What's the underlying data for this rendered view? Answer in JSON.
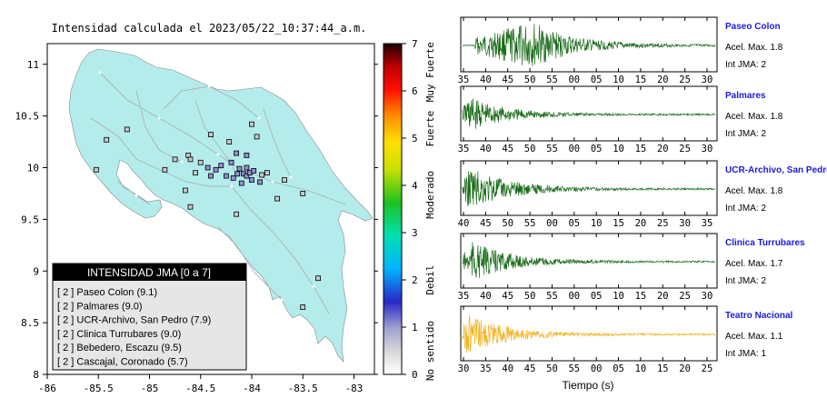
{
  "map": {
    "title": "Intensidad calculada el 2023/05/22_10:37:44_a.m.",
    "x_ticks": [
      "-86",
      "-85.5",
      "-85",
      "-84.5",
      "-84",
      "-83.5",
      "-83"
    ],
    "x_values": [
      -86,
      -85.5,
      -85,
      -84.5,
      -84,
      -83.5,
      -83
    ],
    "y_ticks": [
      "11",
      "10.5",
      "10",
      "9.5",
      "9",
      "8.5",
      "8"
    ],
    "y_values": [
      11,
      10.5,
      10,
      9.5,
      9,
      8.5,
      8
    ],
    "xlim": [
      -86,
      -82.8
    ],
    "ylim": [
      8,
      11.2
    ],
    "land_color": "#b4ecec",
    "stations": [
      {
        "lon": -84.75,
        "lat": 10.08
      },
      {
        "lon": -84.62,
        "lat": 10.12
      },
      {
        "lon": -84.5,
        "lat": 10.05
      },
      {
        "lon": -84.43,
        "lat": 10.0
      },
      {
        "lon": -84.35,
        "lat": 9.98
      },
      {
        "lon": -84.3,
        "lat": 10.02
      },
      {
        "lon": -84.2,
        "lat": 10.05
      },
      {
        "lon": -84.12,
        "lat": 9.99
      },
      {
        "lon": -84.08,
        "lat": 9.94
      },
      {
        "lon": -84.05,
        "lat": 9.92
      },
      {
        "lon": -84.02,
        "lat": 9.95
      },
      {
        "lon": -83.98,
        "lat": 9.97
      },
      {
        "lon": -84.14,
        "lat": 9.94
      },
      {
        "lon": -84.18,
        "lat": 9.9
      },
      {
        "lon": -84.0,
        "lat": 9.88
      },
      {
        "lon": -83.92,
        "lat": 9.86
      },
      {
        "lon": -83.9,
        "lat": 9.93
      },
      {
        "lon": -84.1,
        "lat": 9.85
      },
      {
        "lon": -84.25,
        "lat": 9.92
      },
      {
        "lon": -84.4,
        "lat": 9.92
      },
      {
        "lon": -84.55,
        "lat": 9.95
      },
      {
        "lon": -84.6,
        "lat": 10.08
      },
      {
        "lon": -84.22,
        "lat": 10.25
      },
      {
        "lon": -84.4,
        "lat": 10.32
      },
      {
        "lon": -84.0,
        "lat": 10.42
      },
      {
        "lon": -83.95,
        "lat": 10.3
      },
      {
        "lon": -84.05,
        "lat": 10.12
      },
      {
        "lon": -84.15,
        "lat": 10.14
      },
      {
        "lon": -85.22,
        "lat": 10.37
      },
      {
        "lon": -85.42,
        "lat": 10.27
      },
      {
        "lon": -85.52,
        "lat": 9.98
      },
      {
        "lon": -84.85,
        "lat": 9.98
      },
      {
        "lon": -84.65,
        "lat": 9.78
      },
      {
        "lon": -84.6,
        "lat": 9.62
      },
      {
        "lon": -84.15,
        "lat": 9.55
      },
      {
        "lon": -83.68,
        "lat": 9.88
      },
      {
        "lon": -83.75,
        "lat": 9.7
      },
      {
        "lon": -83.5,
        "lat": 9.75
      },
      {
        "lon": -83.35,
        "lat": 8.93
      },
      {
        "lon": -83.5,
        "lat": 8.65
      },
      {
        "lon": -84.05,
        "lat": 10.0
      },
      {
        "lon": -83.85,
        "lat": 9.95
      }
    ],
    "legend": {
      "title": "INTENSIDAD JMA [0 a 7]",
      "items": [
        "[ 2 ]  Paseo Colon (9.1)",
        "[ 2 ]  Palmares (9.0)",
        "[ 2 ]  UCR-Archivo, San Pedro (7.9)",
        "[ 2 ]  Clinica Turrubares (9.0)",
        "[ 2 ]  Bebedero, Escazu (9.5)",
        "[ 2 ]  Cascajal, Coronado (5.7)"
      ]
    }
  },
  "colorbar": {
    "ticks": [
      "0",
      "1",
      "2",
      "3",
      "4",
      "5",
      "6",
      "7"
    ],
    "tick_values": [
      0,
      1,
      2,
      3,
      4,
      5,
      6,
      7
    ],
    "labels": [
      "No sentido",
      "Debil",
      "Moderado",
      "Fuerte",
      "Muy Fuerte"
    ],
    "label_values": [
      0.5,
      2,
      3.8,
      5.2,
      6.4
    ]
  },
  "seismograms": {
    "xlabel": "Tiempo (s)",
    "panels": [
      {
        "name": "Paseo Colon",
        "acel": "Acel. Max. 1.8",
        "jma": "Int JMA: 2",
        "ticks": [
          "35",
          "40",
          "45",
          "50",
          "55",
          "00",
          "05",
          "10",
          "15",
          "20",
          "25",
          "30"
        ],
        "color": "#1a6b1a",
        "onset": 0.05,
        "peak": 0.28,
        "amp": 1.0
      },
      {
        "name": "Palmares",
        "acel": "Acel. Max. 1.8",
        "jma": "Int JMA: 2",
        "ticks": [
          "35",
          "40",
          "45",
          "50",
          "55",
          "00",
          "05",
          "10",
          "15",
          "20",
          "25",
          "30"
        ],
        "color": "#1a6b1a",
        "onset": 0.0,
        "peak": 0.02,
        "amp": 0.8
      },
      {
        "name": "UCR-Archivo, San Pedro",
        "acel": "Acel. Max. 1.8",
        "jma": "Int JMA: 2",
        "ticks": [
          "40",
          "45",
          "50",
          "55",
          "00",
          "05",
          "10",
          "15",
          "20",
          "25",
          "30",
          "35"
        ],
        "color": "#1a6b1a",
        "onset": 0.0,
        "peak": 0.03,
        "amp": 0.95
      },
      {
        "name": "Clinica Turrubares",
        "acel": "Acel. Max. 1.7",
        "jma": "Int JMA: 2",
        "ticks": [
          "35",
          "40",
          "45",
          "50",
          "55",
          "00",
          "05",
          "10",
          "15",
          "20",
          "25",
          "30"
        ],
        "color": "#1a6b1a",
        "onset": 0.0,
        "peak": 0.04,
        "amp": 0.85
      },
      {
        "name": "Teatro Nacional",
        "acel": "Acel. Max. 1.1",
        "jma": "Int JMA: 1",
        "ticks": [
          "30",
          "35",
          "40",
          "45",
          "50",
          "55",
          "00",
          "05",
          "10",
          "15",
          "20",
          "25"
        ],
        "color": "#f2b322",
        "onset": 0.0,
        "peak": 0.02,
        "amp": 0.9
      }
    ]
  },
  "chart_data": [
    {
      "type": "scatter",
      "title": "Intensidad calculada el 2023/05/22_10:37:44_a.m.",
      "xlim": [
        -86,
        -82.8
      ],
      "ylim": [
        8,
        11.2
      ],
      "legend_placement": "bottom-left"
    },
    {
      "type": "line",
      "xlabel": "Tiempo (s)",
      "series": [
        {
          "name": "Paseo Colon"
        },
        {
          "name": "Palmares"
        },
        {
          "name": "UCR-Archivo, San Pedro"
        },
        {
          "name": "Clinica Turrubares"
        },
        {
          "name": "Teatro Nacional"
        }
      ]
    }
  ]
}
